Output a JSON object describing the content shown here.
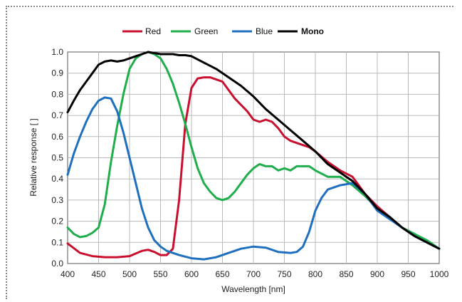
{
  "chart_data": {
    "type": "line",
    "xlabel": "Wavelength [nm]",
    "ylabel": "Relative response [ ]",
    "xlim": [
      400,
      1000
    ],
    "ylim": [
      0,
      1.0
    ],
    "xticks": [
      "400",
      "450",
      "500",
      "550",
      "600",
      "650",
      "700",
      "750",
      "800",
      "850",
      "900",
      "950",
      "1000"
    ],
    "yticks": [
      "0.0",
      "0.1",
      "0.2",
      "0.3",
      "0.4",
      "0.5",
      "0.6",
      "0.7",
      "0.8",
      "0.9",
      "1.0"
    ],
    "grid": true,
    "legend_position": "top",
    "series": [
      {
        "name": "Red",
        "color": "#c8102e",
        "x": [
          400,
          420,
          440,
          460,
          480,
          500,
          520,
          530,
          540,
          550,
          560,
          570,
          580,
          590,
          600,
          610,
          620,
          630,
          640,
          650,
          660,
          670,
          680,
          690,
          700,
          710,
          720,
          730,
          740,
          750,
          760,
          770,
          780,
          790,
          800,
          820,
          840,
          860,
          880,
          900,
          920,
          940,
          960,
          980,
          1000
        ],
        "y": [
          0.095,
          0.05,
          0.035,
          0.03,
          0.03,
          0.035,
          0.06,
          0.065,
          0.055,
          0.04,
          0.04,
          0.07,
          0.3,
          0.66,
          0.83,
          0.875,
          0.88,
          0.88,
          0.87,
          0.86,
          0.82,
          0.78,
          0.75,
          0.72,
          0.68,
          0.67,
          0.68,
          0.67,
          0.64,
          0.6,
          0.58,
          0.57,
          0.56,
          0.55,
          0.53,
          0.48,
          0.44,
          0.41,
          0.33,
          0.27,
          0.22,
          0.17,
          0.13,
          0.1,
          0.07
        ]
      },
      {
        "name": "Green",
        "color": "#1fae4b",
        "x": [
          400,
          410,
          420,
          430,
          440,
          450,
          460,
          470,
          480,
          490,
          500,
          510,
          520,
          530,
          540,
          550,
          560,
          570,
          580,
          590,
          600,
          610,
          620,
          630,
          640,
          650,
          660,
          670,
          680,
          690,
          700,
          710,
          720,
          730,
          740,
          750,
          760,
          770,
          780,
          790,
          800,
          820,
          840,
          860,
          880,
          900,
          920,
          940,
          960,
          980,
          1000
        ],
        "y": [
          0.17,
          0.14,
          0.125,
          0.13,
          0.145,
          0.17,
          0.28,
          0.48,
          0.65,
          0.8,
          0.92,
          0.97,
          0.99,
          1.0,
          0.99,
          0.97,
          0.92,
          0.85,
          0.76,
          0.66,
          0.55,
          0.45,
          0.38,
          0.34,
          0.31,
          0.3,
          0.31,
          0.34,
          0.38,
          0.42,
          0.45,
          0.47,
          0.46,
          0.46,
          0.44,
          0.45,
          0.44,
          0.46,
          0.46,
          0.46,
          0.44,
          0.41,
          0.41,
          0.37,
          0.32,
          0.26,
          0.22,
          0.17,
          0.14,
          0.11,
          0.07
        ]
      },
      {
        "name": "Blue",
        "color": "#1f6fbf",
        "x": [
          400,
          410,
          420,
          430,
          440,
          450,
          460,
          470,
          480,
          490,
          500,
          510,
          520,
          530,
          540,
          550,
          560,
          580,
          600,
          620,
          640,
          660,
          680,
          700,
          720,
          740,
          760,
          770,
          780,
          790,
          800,
          810,
          820,
          840,
          860,
          880,
          900,
          920,
          940,
          960,
          980,
          1000
        ],
        "y": [
          0.42,
          0.52,
          0.6,
          0.67,
          0.73,
          0.77,
          0.785,
          0.78,
          0.72,
          0.62,
          0.5,
          0.38,
          0.26,
          0.17,
          0.11,
          0.08,
          0.06,
          0.04,
          0.025,
          0.02,
          0.03,
          0.05,
          0.07,
          0.08,
          0.075,
          0.055,
          0.05,
          0.055,
          0.08,
          0.15,
          0.25,
          0.31,
          0.35,
          0.37,
          0.38,
          0.33,
          0.25,
          0.21,
          0.17,
          0.13,
          0.1,
          0.07
        ]
      },
      {
        "name": "Mono",
        "color": "#000000",
        "x": [
          400,
          410,
          420,
          430,
          440,
          450,
          460,
          470,
          480,
          490,
          500,
          510,
          520,
          530,
          540,
          550,
          560,
          570,
          580,
          590,
          600,
          620,
          640,
          660,
          680,
          700,
          720,
          740,
          760,
          780,
          800,
          820,
          840,
          860,
          880,
          900,
          920,
          940,
          960,
          980,
          1000
        ],
        "y": [
          0.715,
          0.77,
          0.82,
          0.86,
          0.9,
          0.94,
          0.955,
          0.96,
          0.955,
          0.96,
          0.97,
          0.98,
          0.99,
          1.0,
          0.995,
          0.99,
          0.99,
          0.99,
          0.985,
          0.985,
          0.98,
          0.95,
          0.92,
          0.88,
          0.84,
          0.79,
          0.73,
          0.68,
          0.63,
          0.58,
          0.53,
          0.47,
          0.43,
          0.39,
          0.33,
          0.26,
          0.22,
          0.17,
          0.13,
          0.1,
          0.07
        ]
      }
    ]
  }
}
